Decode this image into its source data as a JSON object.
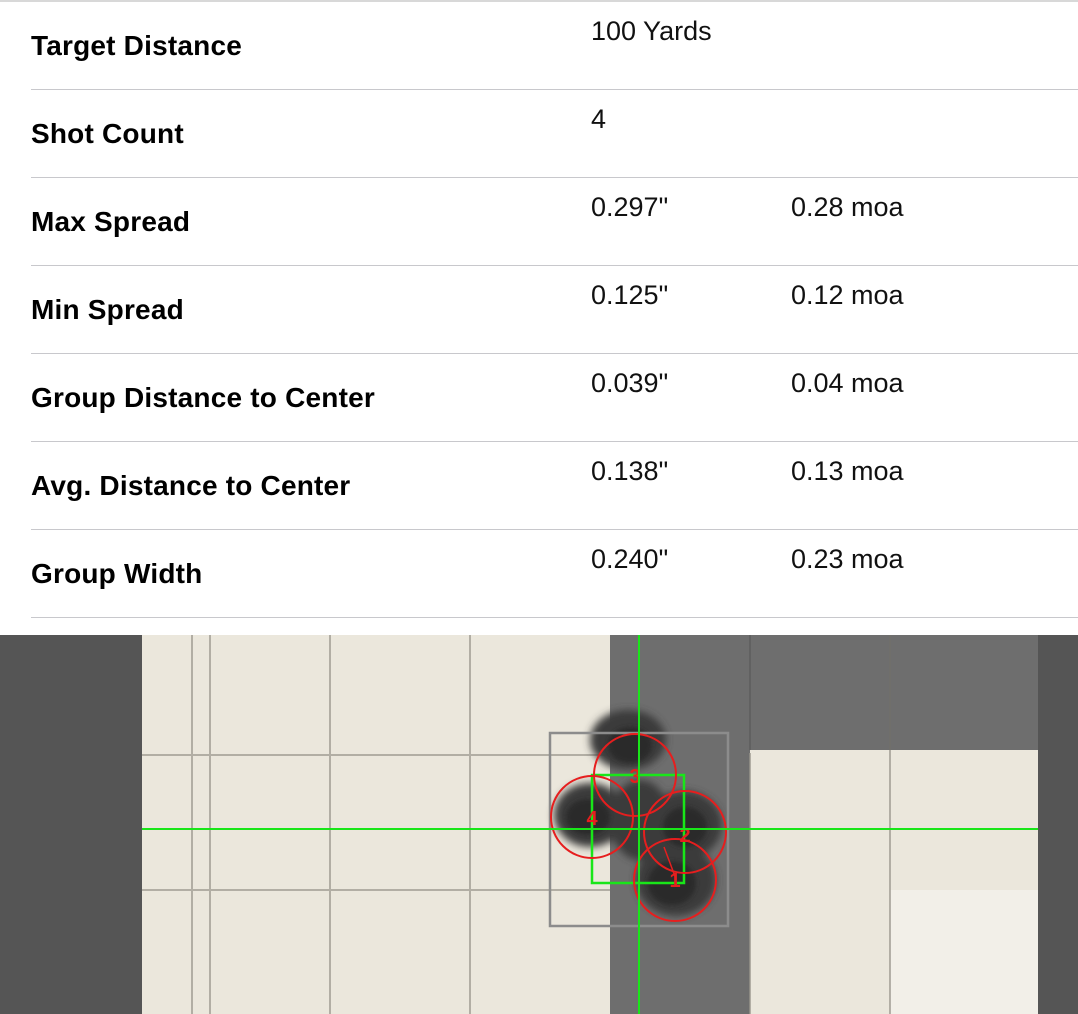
{
  "stats": [
    {
      "label": "Target Distance",
      "value": "100 Yards",
      "moa": ""
    },
    {
      "label": "Shot Count",
      "value": "4",
      "moa": ""
    },
    {
      "label": "Max Spread",
      "value": "0.297\"",
      "moa": "0.28 moa"
    },
    {
      "label": "Min Spread",
      "value": "0.125\"",
      "moa": "0.12 moa"
    },
    {
      "label": "Group Distance to Center",
      "value": "0.039\"",
      "moa": "0.04 moa"
    },
    {
      "label": "Avg. Distance to Center",
      "value": "0.138\"",
      "moa": "0.13 moa"
    },
    {
      "label": "Group Width",
      "value": "0.240\"",
      "moa": "0.23 moa"
    }
  ],
  "target": {
    "shot_labels": [
      "1",
      "2",
      "3",
      "4"
    ],
    "colors": {
      "crosshair": "#19e619",
      "shot_circle": "#e61e1e",
      "bounding_box": "#8c8c8c",
      "paper": "#ebe7dc",
      "dark_square": "#6e6e6e",
      "background": "#555555"
    }
  }
}
